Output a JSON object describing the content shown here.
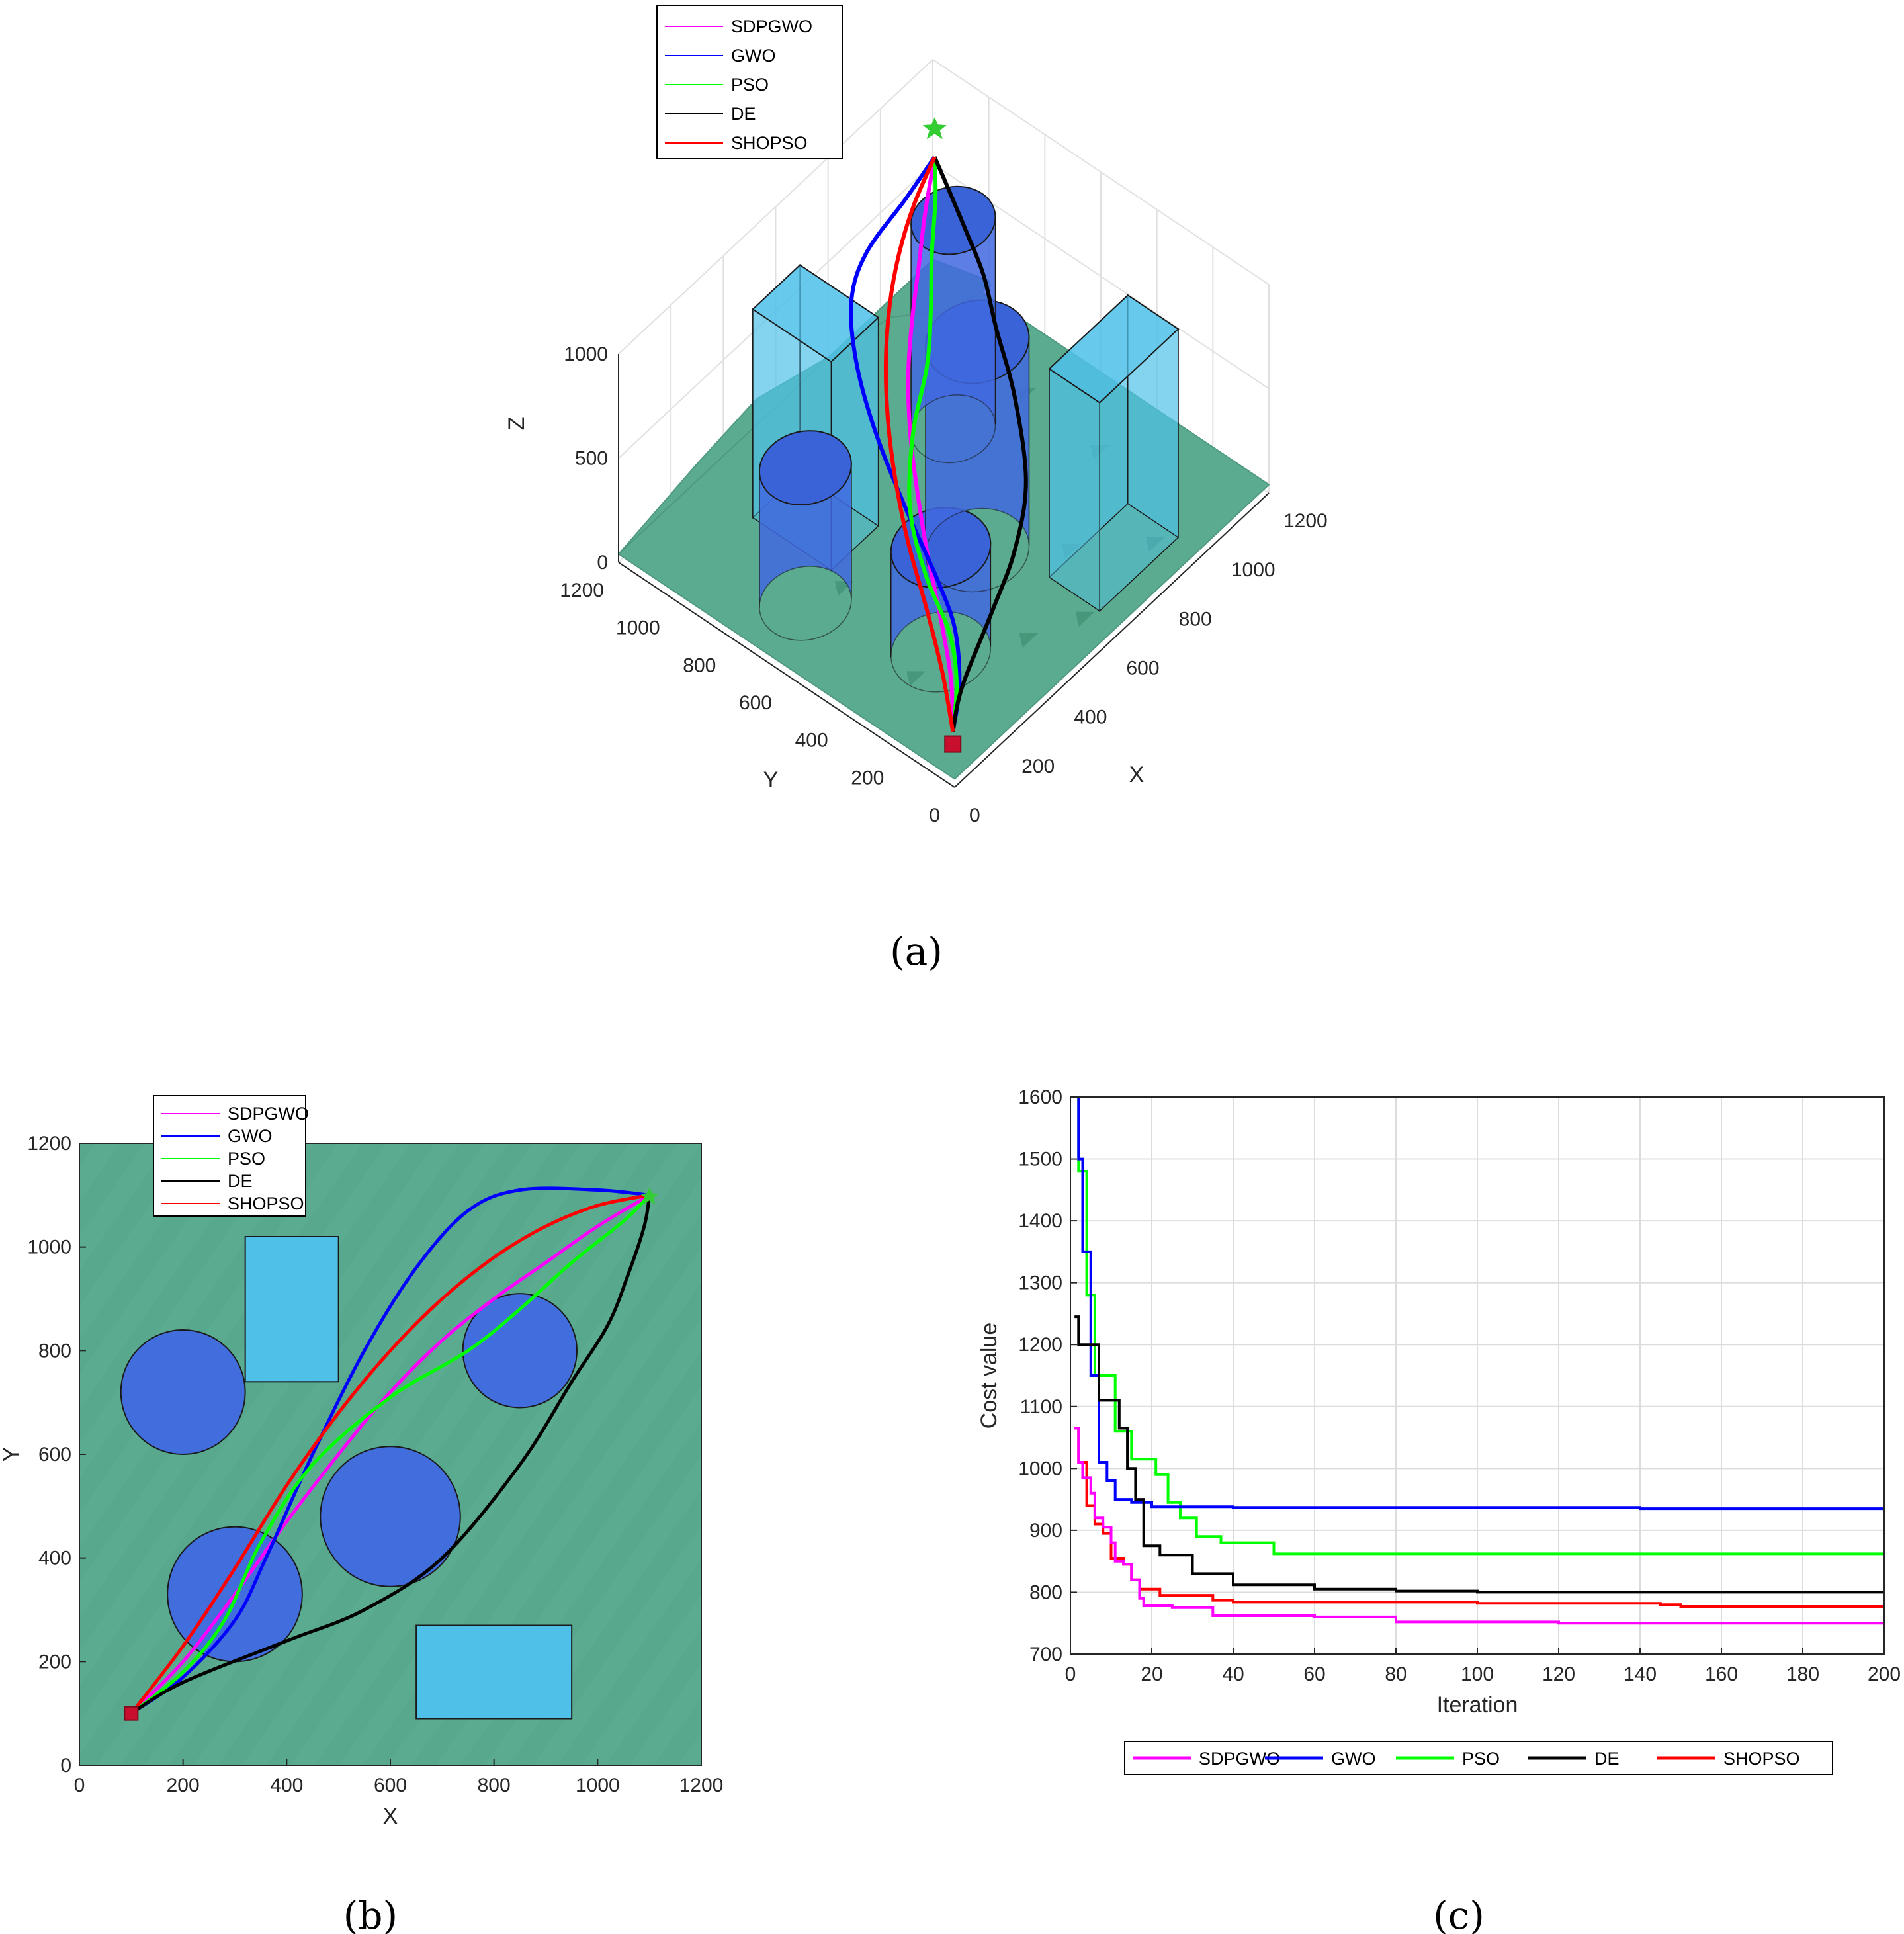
{
  "colors": {
    "SDPGWO": "#ff00ff",
    "GWO": "#0000ff",
    "PSO": "#00ff00",
    "DE": "#000000",
    "SHOPSO": "#ff0000",
    "terrain": "#5aab8f",
    "cylinder": "#4169e1",
    "box": "#4fc0e8"
  },
  "chart_data": [
    {
      "id": "a",
      "type": "scatter",
      "subtitle": "(a)",
      "title": "",
      "xlabel": "X",
      "ylabel": "Y",
      "zlabel": "Z",
      "xlim": [
        0,
        1200
      ],
      "ylim": [
        0,
        1200
      ],
      "zlim": [
        0,
        1000
      ],
      "x_ticks": [
        "0",
        "200",
        "400",
        "600",
        "800",
        "1000",
        "1200"
      ],
      "y_ticks": [
        "0",
        "200",
        "400",
        "600",
        "800",
        "1000",
        "1200"
      ],
      "z_ticks": [
        "0",
        "500",
        "1000"
      ],
      "legend": [
        "SDPGWO",
        "GWO",
        "PSO",
        "DE",
        "SHOPSO"
      ],
      "legend_position": "top-left",
      "start": [
        100,
        100
      ],
      "goal": [
        1100,
        1100
      ],
      "obstacles": {
        "cylinders": [
          {
            "center": [
              200,
              720
            ],
            "radius": 120
          },
          {
            "center": [
              300,
              330
            ],
            "radius": 130
          },
          {
            "center": [
              600,
              480
            ],
            "radius": 135
          },
          {
            "center": [
              850,
              800
            ],
            "radius": 110
          }
        ],
        "boxes": [
          {
            "x": [
              320,
              500
            ],
            "y": [
              740,
              1020
            ]
          },
          {
            "x": [
              650,
              950
            ],
            "y": [
              90,
              270
            ]
          }
        ]
      }
    },
    {
      "id": "b",
      "type": "line",
      "subtitle": "(b)",
      "title": "",
      "xlabel": "X",
      "ylabel": "Y",
      "xlim": [
        0,
        1200
      ],
      "ylim": [
        0,
        1200
      ],
      "x_ticks": [
        "0",
        "200",
        "400",
        "600",
        "800",
        "1000",
        "1200"
      ],
      "y_ticks": [
        "0",
        "200",
        "400",
        "600",
        "800",
        "1000",
        "1200"
      ],
      "legend": [
        "SDPGWO",
        "GWO",
        "PSO",
        "DE",
        "SHOPSO"
      ],
      "legend_position": "top-left",
      "start": [
        100,
        100
      ],
      "goal": [
        1100,
        1100
      ],
      "cylinders": [
        {
          "center": [
            200,
            720
          ],
          "radius": 120
        },
        {
          "center": [
            300,
            330
          ],
          "radius": 130
        },
        {
          "center": [
            600,
            480
          ],
          "radius": 135
        },
        {
          "center": [
            850,
            800
          ],
          "radius": 110
        }
      ],
      "boxes": [
        {
          "x": [
            320,
            500
          ],
          "y": [
            740,
            1020
          ]
        },
        {
          "x": [
            650,
            950
          ],
          "y": [
            90,
            270
          ]
        }
      ],
      "series": [
        {
          "name": "SDPGWO",
          "points": [
            [
              100,
              100
            ],
            [
              200,
              200
            ],
            [
              300,
              330
            ],
            [
              400,
              470
            ],
            [
              500,
              600
            ],
            [
              600,
              720
            ],
            [
              700,
              820
            ],
            [
              800,
              900
            ],
            [
              900,
              970
            ],
            [
              1000,
              1040
            ],
            [
              1100,
              1100
            ]
          ]
        },
        {
          "name": "GWO",
          "points": [
            [
              100,
              100
            ],
            [
              200,
              170
            ],
            [
              300,
              280
            ],
            [
              360,
              400
            ],
            [
              450,
              600
            ],
            [
              550,
              800
            ],
            [
              650,
              960
            ],
            [
              750,
              1070
            ],
            [
              850,
              1110
            ],
            [
              1000,
              1110
            ],
            [
              1100,
              1100
            ]
          ]
        },
        {
          "name": "PSO",
          "points": [
            [
              100,
              100
            ],
            [
              200,
              180
            ],
            [
              280,
              280
            ],
            [
              350,
              430
            ],
            [
              450,
              580
            ],
            [
              600,
              710
            ],
            [
              750,
              800
            ],
            [
              850,
              880
            ],
            [
              950,
              970
            ],
            [
              1050,
              1050
            ],
            [
              1100,
              1100
            ]
          ]
        },
        {
          "name": "DE",
          "points": [
            [
              100,
              100
            ],
            [
              200,
              160
            ],
            [
              400,
              240
            ],
            [
              550,
              300
            ],
            [
              700,
              400
            ],
            [
              850,
              580
            ],
            [
              950,
              740
            ],
            [
              1020,
              850
            ],
            [
              1060,
              950
            ],
            [
              1090,
              1040
            ],
            [
              1100,
              1100
            ]
          ]
        },
        {
          "name": "SHOPSO",
          "points": [
            [
              100,
              100
            ],
            [
              200,
              230
            ],
            [
              300,
              380
            ],
            [
              400,
              540
            ],
            [
              500,
              680
            ],
            [
              600,
              800
            ],
            [
              700,
              900
            ],
            [
              800,
              980
            ],
            [
              900,
              1040
            ],
            [
              1000,
              1080
            ],
            [
              1100,
              1100
            ]
          ]
        }
      ]
    },
    {
      "id": "c",
      "type": "line",
      "subtitle": "(c)",
      "title": "",
      "xlabel": "Iteration",
      "ylabel": "Cost value",
      "xlim": [
        0,
        200
      ],
      "ylim": [
        700,
        1600
      ],
      "grid": true,
      "x_ticks": [
        "0",
        "20",
        "40",
        "60",
        "80",
        "100",
        "120",
        "140",
        "160",
        "180",
        "200"
      ],
      "y_ticks": [
        "700",
        "800",
        "900",
        "1000",
        "1100",
        "1200",
        "1300",
        "1400",
        "1500",
        "1600"
      ],
      "legend": [
        "SDPGWO",
        "GWO",
        "PSO",
        "DE",
        "SHOPSO"
      ],
      "legend_position": "bottom-outside",
      "series": [
        {
          "name": "SDPGWO",
          "points": [
            [
              1,
              1065
            ],
            [
              2,
              1010
            ],
            [
              3,
              985
            ],
            [
              5,
              960
            ],
            [
              6,
              920
            ],
            [
              8,
              905
            ],
            [
              10,
              880
            ],
            [
              11,
              850
            ],
            [
              13,
              845
            ],
            [
              15,
              820
            ],
            [
              17,
              790
            ],
            [
              18,
              778
            ],
            [
              25,
              775
            ],
            [
              35,
              762
            ],
            [
              60,
              760
            ],
            [
              80,
              752
            ],
            [
              120,
              750
            ],
            [
              200,
              750
            ]
          ]
        },
        {
          "name": "GWO",
          "points": [
            [
              1,
              1600
            ],
            [
              2,
              1500
            ],
            [
              3,
              1350
            ],
            [
              5,
              1150
            ],
            [
              7,
              1010
            ],
            [
              9,
              980
            ],
            [
              11,
              950
            ],
            [
              15,
              945
            ],
            [
              20,
              938
            ],
            [
              40,
              937
            ],
            [
              110,
              937
            ],
            [
              140,
              935
            ],
            [
              200,
              935
            ]
          ]
        },
        {
          "name": "PSO",
          "points": [
            [
              1,
              1600
            ],
            [
              2,
              1480
            ],
            [
              4,
              1280
            ],
            [
              6,
              1150
            ],
            [
              10,
              1150
            ],
            [
              11,
              1060
            ],
            [
              15,
              1015
            ],
            [
              19,
              1015
            ],
            [
              21,
              990
            ],
            [
              24,
              945
            ],
            [
              27,
              920
            ],
            [
              31,
              890
            ],
            [
              37,
              880
            ],
            [
              50,
              862
            ],
            [
              100,
              862
            ],
            [
              200,
              862
            ]
          ]
        },
        {
          "name": "DE",
          "points": [
            [
              1,
              1245
            ],
            [
              2,
              1200
            ],
            [
              5,
              1200
            ],
            [
              7,
              1110
            ],
            [
              10,
              1110
            ],
            [
              12,
              1065
            ],
            [
              14,
              1000
            ],
            [
              16,
              950
            ],
            [
              18,
              875
            ],
            [
              22,
              860
            ],
            [
              30,
              830
            ],
            [
              40,
              812
            ],
            [
              60,
              805
            ],
            [
              80,
              802
            ],
            [
              100,
              800
            ],
            [
              200,
              800
            ]
          ]
        },
        {
          "name": "SHOPSO",
          "points": [
            [
              1,
              1065
            ],
            [
              2,
              1010
            ],
            [
              4,
              940
            ],
            [
              6,
              910
            ],
            [
              8,
              895
            ],
            [
              10,
              855
            ],
            [
              13,
              845
            ],
            [
              15,
              820
            ],
            [
              17,
              805
            ],
            [
              22,
              795
            ],
            [
              35,
              787
            ],
            [
              40,
              784
            ],
            [
              100,
              782
            ],
            [
              145,
              780
            ],
            [
              150,
              777
            ],
            [
              200,
              775
            ]
          ]
        }
      ]
    }
  ]
}
